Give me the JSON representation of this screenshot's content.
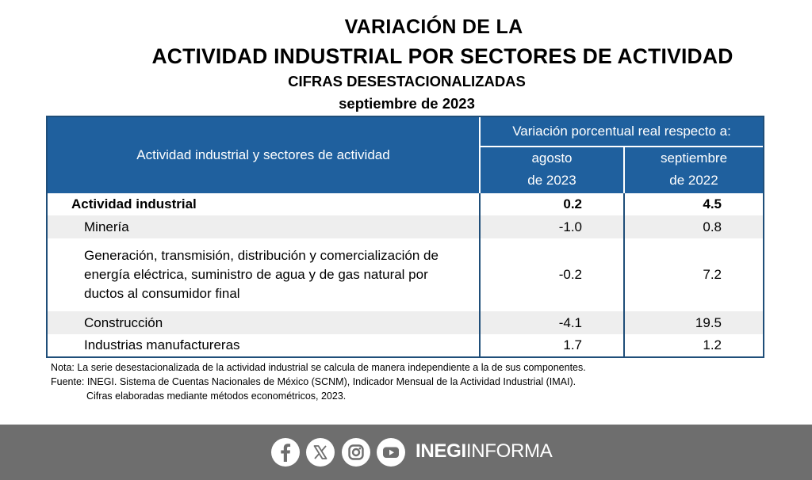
{
  "title": {
    "line1": "VARIACIÓN  DE LA",
    "line2": "ACTIVIDAD INDUSTRIAL  POR SECTORES DE ACTIVIDAD",
    "line3": "CIFRAS DESESTACIONALIZADAS",
    "line4": "septiembre de 2023"
  },
  "table": {
    "row_header": "Actividad industrial y sectores de actividad",
    "group_header": "Variación porcentual real respecto a:",
    "col1": {
      "line1": "agosto",
      "line2": "de 2023"
    },
    "col2": {
      "line1": "septiembre",
      "line2": "de 2022"
    },
    "rows": [
      {
        "label": "Actividad industrial",
        "v1": "0.2",
        "v2": "4.5"
      },
      {
        "label": "Minería",
        "v1": "-1.0",
        "v2": "0.8"
      },
      {
        "label_lines": [
          "Generación, transmisión, distribución y comercialización de",
          "energía eléctrica, suministro de agua y de gas natural por",
          "ductos al consumidor final"
        ],
        "v1": "-0.2",
        "v2": "7.2"
      },
      {
        "label": "Construcción",
        "v1": "-4.1",
        "v2": "19.5"
      },
      {
        "label": "Industrias manufactureras",
        "v1": "1.7",
        "v2": "1.2"
      }
    ]
  },
  "notes": {
    "nota": "Nota: La serie desestacionalizada de la actividad industrial se calcula de manera independiente a la de sus componentes.",
    "fuente": "Fuente: INEGI. Sistema de Cuentas Nacionales de México (SCNM), Indicador Mensual de la Actividad Industrial (IMAI).",
    "cifras": "Cifras elaboradas mediante métodos econométricos, 2023."
  },
  "footer": {
    "brand_bold": "INEGI",
    "brand_light": "INFORMA",
    "icons": [
      "facebook-icon",
      "x-icon",
      "instagram-icon",
      "youtube-icon"
    ]
  }
}
